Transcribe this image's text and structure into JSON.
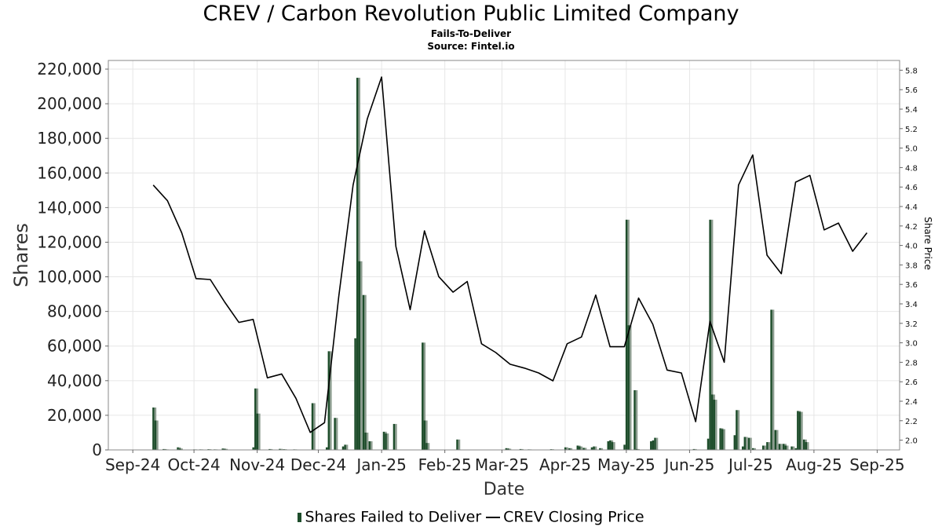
{
  "chart_data": {
    "type": "bar",
    "title": "CREV / Carbon Revolution Public Limited Company",
    "subtitle": "Fails-To-Deliver",
    "source": "Source: Fintel.io",
    "xlabel": "Date",
    "ylabel": "Shares",
    "y2label": "Share Price",
    "x_tick_labels": [
      "Sep-24",
      "Oct-24",
      "Nov-24",
      "Dec-24",
      "Jan-25",
      "Feb-25",
      "Mar-25",
      "Apr-25",
      "May-25",
      "Jun-25",
      "Jul-25",
      "Aug-25",
      "Sep-25"
    ],
    "x_tick_dates": [
      "2024-09-01",
      "2024-10-01",
      "2024-11-01",
      "2024-12-01",
      "2025-01-01",
      "2025-02-01",
      "2025-03-01",
      "2025-04-01",
      "2025-05-01",
      "2025-06-01",
      "2025-07-01",
      "2025-08-01",
      "2025-09-01"
    ],
    "xlim": [
      "2024-08-20",
      "2025-09-12"
    ],
    "ylim": [
      0,
      225000
    ],
    "y_ticks": [
      0,
      20000,
      40000,
      60000,
      80000,
      100000,
      120000,
      140000,
      160000,
      180000,
      200000,
      220000
    ],
    "y_tick_labels": [
      "0",
      "20,000",
      "40,000",
      "60,000",
      "80,000",
      "100,000",
      "120,000",
      "140,000",
      "160,000",
      "180,000",
      "200,000",
      "220,000"
    ],
    "y2lim": [
      1.9,
      5.9
    ],
    "y2_ticks": [
      2.0,
      2.2,
      2.4,
      2.6,
      2.8,
      3.0,
      3.2,
      3.4,
      3.6,
      3.8,
      4.0,
      4.2,
      4.4,
      4.6,
      4.8,
      5.0,
      5.2,
      5.4,
      5.6,
      5.8
    ],
    "y2_tick_labels": [
      "2.0",
      "2.2",
      "2.4",
      "2.6",
      "2.8",
      "3.0",
      "3.2",
      "3.4",
      "3.6",
      "3.8",
      "4.0",
      "4.2",
      "4.4",
      "4.6",
      "4.8",
      "5.0",
      "5.2",
      "5.4",
      "5.6",
      "5.8"
    ],
    "legend_position": "bottom",
    "grid": true,
    "series": [
      {
        "name": "Shares Failed to Deliver",
        "kind": "bar",
        "color": "#1e4d2b",
        "points": [
          [
            "2024-09-11",
            24500
          ],
          [
            "2024-09-12",
            17000
          ],
          [
            "2024-09-16",
            500
          ],
          [
            "2024-09-17",
            300
          ],
          [
            "2024-09-23",
            1500
          ],
          [
            "2024-09-24",
            800
          ],
          [
            "2024-10-01",
            300
          ],
          [
            "2024-10-04",
            300
          ],
          [
            "2024-10-08",
            400
          ],
          [
            "2024-10-11",
            300
          ],
          [
            "2024-10-15",
            800
          ],
          [
            "2024-10-16",
            600
          ],
          [
            "2024-10-30",
            1500
          ],
          [
            "2024-10-31",
            35500
          ],
          [
            "2024-11-01",
            21000
          ],
          [
            "2024-11-07",
            500
          ],
          [
            "2024-11-12",
            600
          ],
          [
            "2024-11-14",
            400
          ],
          [
            "2024-11-19",
            300
          ],
          [
            "2024-11-28",
            27000
          ],
          [
            "2024-12-05",
            1500
          ],
          [
            "2024-12-06",
            57000
          ],
          [
            "2024-12-09",
            18500
          ],
          [
            "2024-12-13",
            2000
          ],
          [
            "2024-12-14",
            3000
          ],
          [
            "2024-12-19",
            64500
          ],
          [
            "2024-12-20",
            215000
          ],
          [
            "2024-12-21",
            109000
          ],
          [
            "2024-12-23",
            89500
          ],
          [
            "2024-12-24",
            10000
          ],
          [
            "2024-12-26",
            5000
          ],
          [
            "2025-01-02",
            10500
          ],
          [
            "2025-01-03",
            9500
          ],
          [
            "2025-01-07",
            15000
          ],
          [
            "2025-01-21",
            62000
          ],
          [
            "2025-01-22",
            17000
          ],
          [
            "2025-01-23",
            4000
          ],
          [
            "2025-02-07",
            6000
          ],
          [
            "2025-03-03",
            1000
          ],
          [
            "2025-03-04",
            700
          ],
          [
            "2025-03-10",
            500
          ],
          [
            "2025-03-14",
            300
          ],
          [
            "2025-03-25",
            400
          ],
          [
            "2025-04-01",
            1500
          ],
          [
            "2025-04-03",
            1000
          ],
          [
            "2025-04-07",
            2500
          ],
          [
            "2025-04-08",
            2000
          ],
          [
            "2025-04-10",
            1200
          ],
          [
            "2025-04-14",
            1500
          ],
          [
            "2025-04-15",
            2000
          ],
          [
            "2025-04-18",
            1000
          ],
          [
            "2025-04-22",
            5000
          ],
          [
            "2025-04-23",
            5500
          ],
          [
            "2025-04-24",
            4500
          ],
          [
            "2025-04-30",
            3000
          ],
          [
            "2025-05-01",
            133000
          ],
          [
            "2025-05-02",
            72000
          ],
          [
            "2025-05-05",
            34500
          ],
          [
            "2025-05-06",
            500
          ],
          [
            "2025-05-13",
            5000
          ],
          [
            "2025-05-14",
            5500
          ],
          [
            "2025-05-15",
            7000
          ],
          [
            "2025-06-03",
            500
          ],
          [
            "2025-06-10",
            6500
          ],
          [
            "2025-06-11",
            133000
          ],
          [
            "2025-06-12",
            32000
          ],
          [
            "2025-06-13",
            29000
          ],
          [
            "2025-06-16",
            12500
          ],
          [
            "2025-06-17",
            12000
          ],
          [
            "2025-06-23",
            8500
          ],
          [
            "2025-06-24",
            23000
          ],
          [
            "2025-06-27",
            2000
          ],
          [
            "2025-06-28",
            7500
          ],
          [
            "2025-06-30",
            7000
          ],
          [
            "2025-07-02",
            1000
          ],
          [
            "2025-07-07",
            2500
          ],
          [
            "2025-07-09",
            4500
          ],
          [
            "2025-07-11",
            81000
          ],
          [
            "2025-07-13",
            11500
          ],
          [
            "2025-07-15",
            3500
          ],
          [
            "2025-07-17",
            3500
          ],
          [
            "2025-07-18",
            2500
          ],
          [
            "2025-07-21",
            2000
          ],
          [
            "2025-07-23",
            1000
          ],
          [
            "2025-07-24",
            22500
          ],
          [
            "2025-07-25",
            22000
          ],
          [
            "2025-07-27",
            6000
          ],
          [
            "2025-07-28",
            4500
          ]
        ]
      },
      {
        "name": "CREV Closing Price",
        "kind": "line",
        "color": "#000000",
        "points": [
          [
            "2024-09-11",
            4.62
          ],
          [
            "2024-09-18",
            4.46
          ],
          [
            "2024-09-25",
            4.13
          ],
          [
            "2024-10-02",
            3.66
          ],
          [
            "2024-10-09",
            3.65
          ],
          [
            "2024-10-16",
            3.42
          ],
          [
            "2024-10-23",
            3.21
          ],
          [
            "2024-10-30",
            3.24
          ],
          [
            "2024-11-06",
            2.64
          ],
          [
            "2024-11-13",
            2.68
          ],
          [
            "2024-11-20",
            2.43
          ],
          [
            "2024-11-27",
            2.08
          ],
          [
            "2024-12-04",
            2.18
          ],
          [
            "2024-12-11",
            3.48
          ],
          [
            "2024-12-18",
            4.62
          ],
          [
            "2024-12-25",
            5.3
          ],
          [
            "2025-01-01",
            5.73
          ],
          [
            "2025-01-08",
            3.99
          ],
          [
            "2025-01-15",
            3.34
          ],
          [
            "2025-01-22",
            4.15
          ],
          [
            "2025-01-29",
            3.68
          ],
          [
            "2025-02-05",
            3.52
          ],
          [
            "2025-02-12",
            3.63
          ],
          [
            "2025-02-19",
            2.99
          ],
          [
            "2025-02-26",
            2.9
          ],
          [
            "2025-03-05",
            2.78
          ],
          [
            "2025-03-12",
            2.74
          ],
          [
            "2025-03-19",
            2.69
          ],
          [
            "2025-03-26",
            2.61
          ],
          [
            "2025-04-02",
            2.99
          ],
          [
            "2025-04-09",
            3.06
          ],
          [
            "2025-04-16",
            3.49
          ],
          [
            "2025-04-23",
            2.96
          ],
          [
            "2025-04-30",
            2.96
          ],
          [
            "2025-05-07",
            3.46
          ],
          [
            "2025-05-14",
            3.19
          ],
          [
            "2025-05-21",
            2.72
          ],
          [
            "2025-05-28",
            2.69
          ],
          [
            "2025-06-04",
            2.19
          ],
          [
            "2025-06-11",
            3.22
          ],
          [
            "2025-06-18",
            2.8
          ],
          [
            "2025-06-25",
            4.62
          ],
          [
            "2025-07-02",
            4.93
          ],
          [
            "2025-07-09",
            3.9
          ],
          [
            "2025-07-16",
            3.71
          ],
          [
            "2025-07-23",
            4.65
          ],
          [
            "2025-07-30",
            4.72
          ],
          [
            "2025-08-06",
            4.16
          ],
          [
            "2025-08-13",
            4.23
          ],
          [
            "2025-08-20",
            3.94
          ],
          [
            "2025-08-27",
            4.13
          ]
        ]
      }
    ]
  }
}
